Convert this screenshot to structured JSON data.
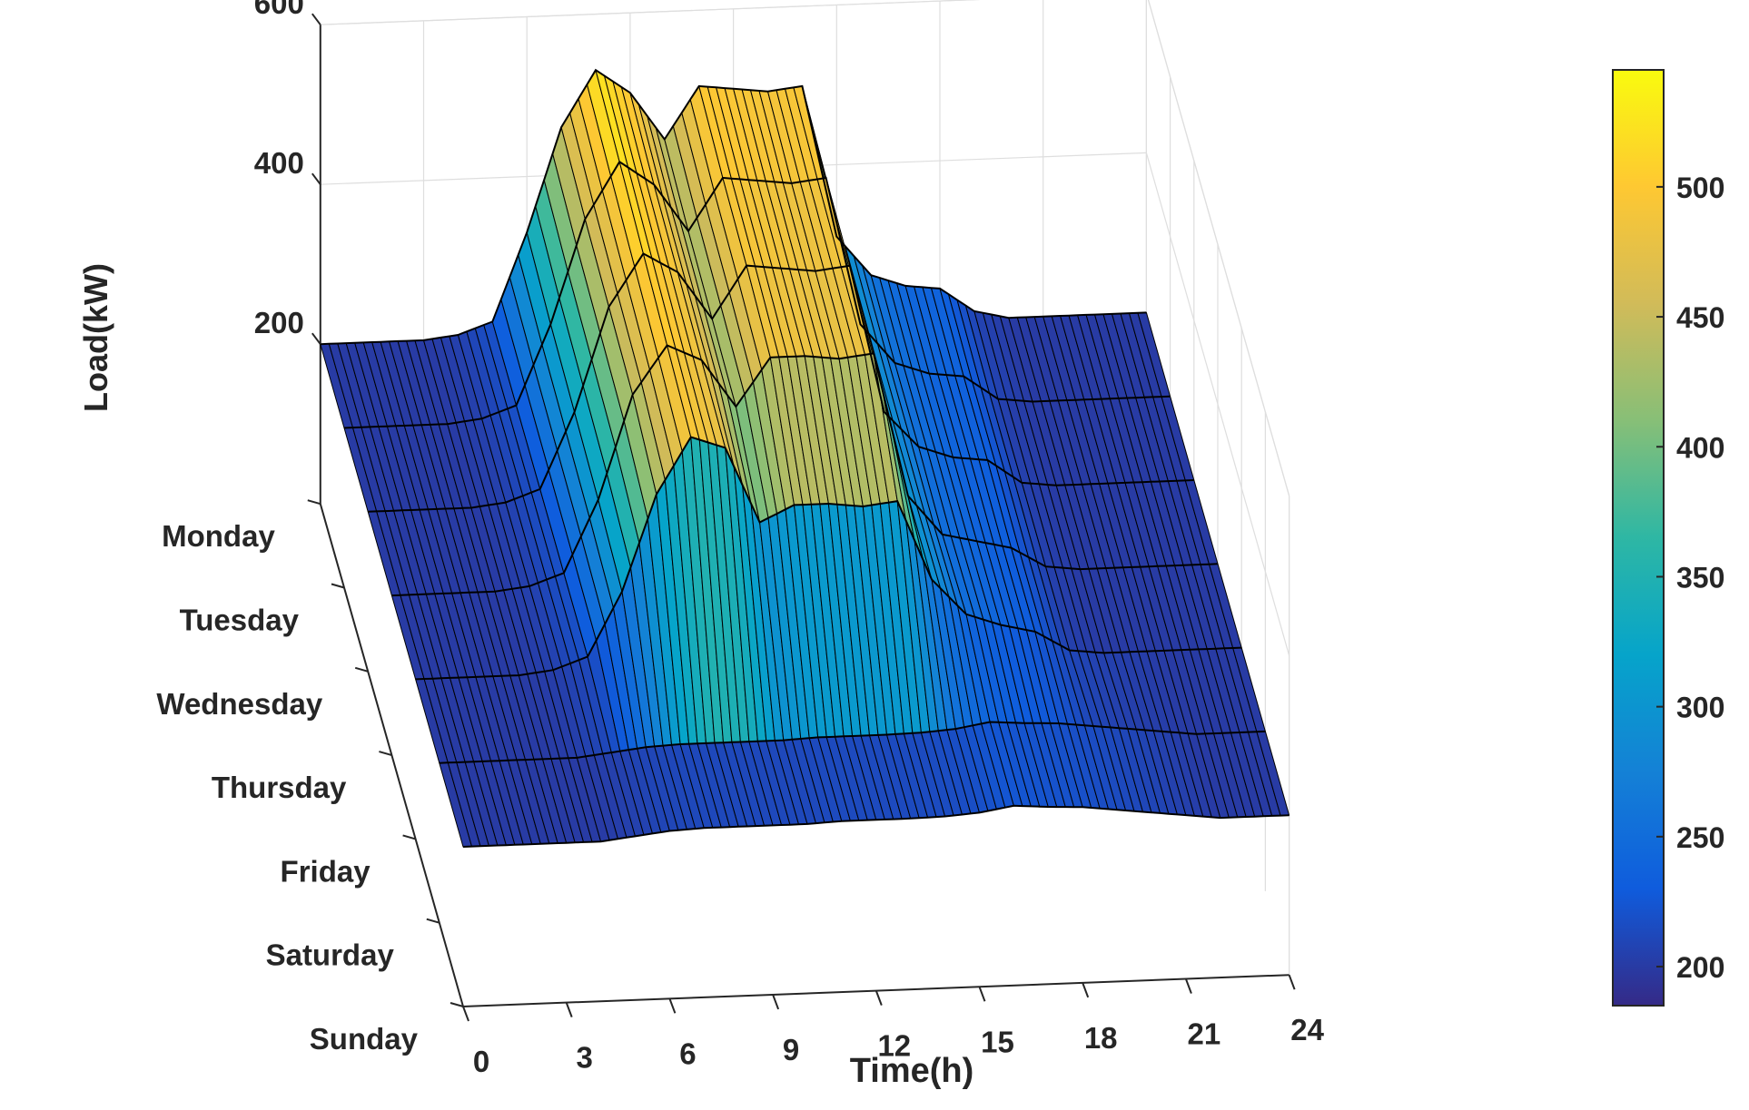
{
  "chart_data": {
    "type": "surface",
    "title": "",
    "xlabel": "Time(h)",
    "ylabel": "",
    "zlabel": "Load(kW)",
    "x_ticks": [
      "0",
      "3",
      "6",
      "9",
      "12",
      "15",
      "18",
      "21",
      "24"
    ],
    "y_ticks": [
      "Monday",
      "Tuesday",
      "Wednesday",
      "Thursday",
      "Friday",
      "Saturday",
      "Sunday"
    ],
    "z_ticks": [
      "200",
      "400",
      "600"
    ],
    "xlim": [
      0,
      24
    ],
    "zlim": [
      0,
      600
    ],
    "grid": true,
    "colormap": "parula",
    "colorbar": {
      "range": [
        185,
        545
      ],
      "ticks": [
        "200",
        "250",
        "300",
        "350",
        "400",
        "450",
        "500"
      ],
      "colors": [
        "#352a87",
        "#0f5cdd",
        "#1481d6",
        "#06a4ca",
        "#2eb7a4",
        "#87bf77",
        "#d1bb59",
        "#fec832",
        "#f9fb0e"
      ]
    },
    "time_hours": [
      0,
      1,
      2,
      3,
      4,
      5,
      6,
      7,
      8,
      9,
      10,
      11,
      12,
      13,
      14,
      15,
      16,
      17,
      18,
      19,
      20,
      21,
      22,
      23,
      24
    ],
    "series": [
      {
        "name": "Monday",
        "values": [
          200,
          200,
          200,
          200,
          205,
          220,
          330,
          460,
          530,
          500,
          440,
          505,
          500,
          495,
          500,
          310,
          260,
          245,
          240,
          210,
          200,
          200,
          200,
          200,
          200
        ]
      },
      {
        "name": "Tuesday",
        "values": [
          200,
          200,
          200,
          200,
          205,
          220,
          320,
          450,
          520,
          490,
          430,
          495,
          490,
          485,
          490,
          305,
          255,
          240,
          235,
          205,
          200,
          200,
          200,
          200,
          200
        ]
      },
      {
        "name": "Wednesday",
        "values": [
          200,
          200,
          200,
          200,
          205,
          220,
          315,
          445,
          510,
          485,
          425,
          490,
          485,
          480,
          485,
          300,
          255,
          240,
          235,
          205,
          200,
          200,
          200,
          200,
          200
        ]
      },
      {
        "name": "Thursday",
        "values": [
          200,
          200,
          200,
          200,
          205,
          220,
          310,
          440,
          500,
          480,
          420,
          480,
          480,
          475,
          480,
          300,
          250,
          240,
          230,
          205,
          200,
          200,
          200,
          200,
          200
        ]
      },
      {
        "name": "Friday",
        "values": [
          200,
          200,
          200,
          200,
          205,
          220,
          300,
          420,
          490,
          475,
          380,
          400,
          400,
          395,
          400,
          300,
          255,
          240,
          230,
          205,
          200,
          200,
          200,
          200,
          200
        ]
      },
      {
        "name": "Saturday",
        "values": [
          200,
          200,
          200,
          200,
          200,
          205,
          210,
          212,
          212,
          212,
          212,
          214,
          214,
          214,
          215,
          218,
          225,
          222,
          220,
          215,
          210,
          205,
          200,
          200,
          200
        ]
      },
      {
        "name": "Sunday",
        "values": [
          200,
          200,
          200,
          200,
          200,
          205,
          210,
          212,
          212,
          212,
          212,
          214,
          214,
          214,
          215,
          218,
          225,
          222,
          220,
          215,
          210,
          205,
          200,
          200,
          200
        ]
      }
    ]
  }
}
